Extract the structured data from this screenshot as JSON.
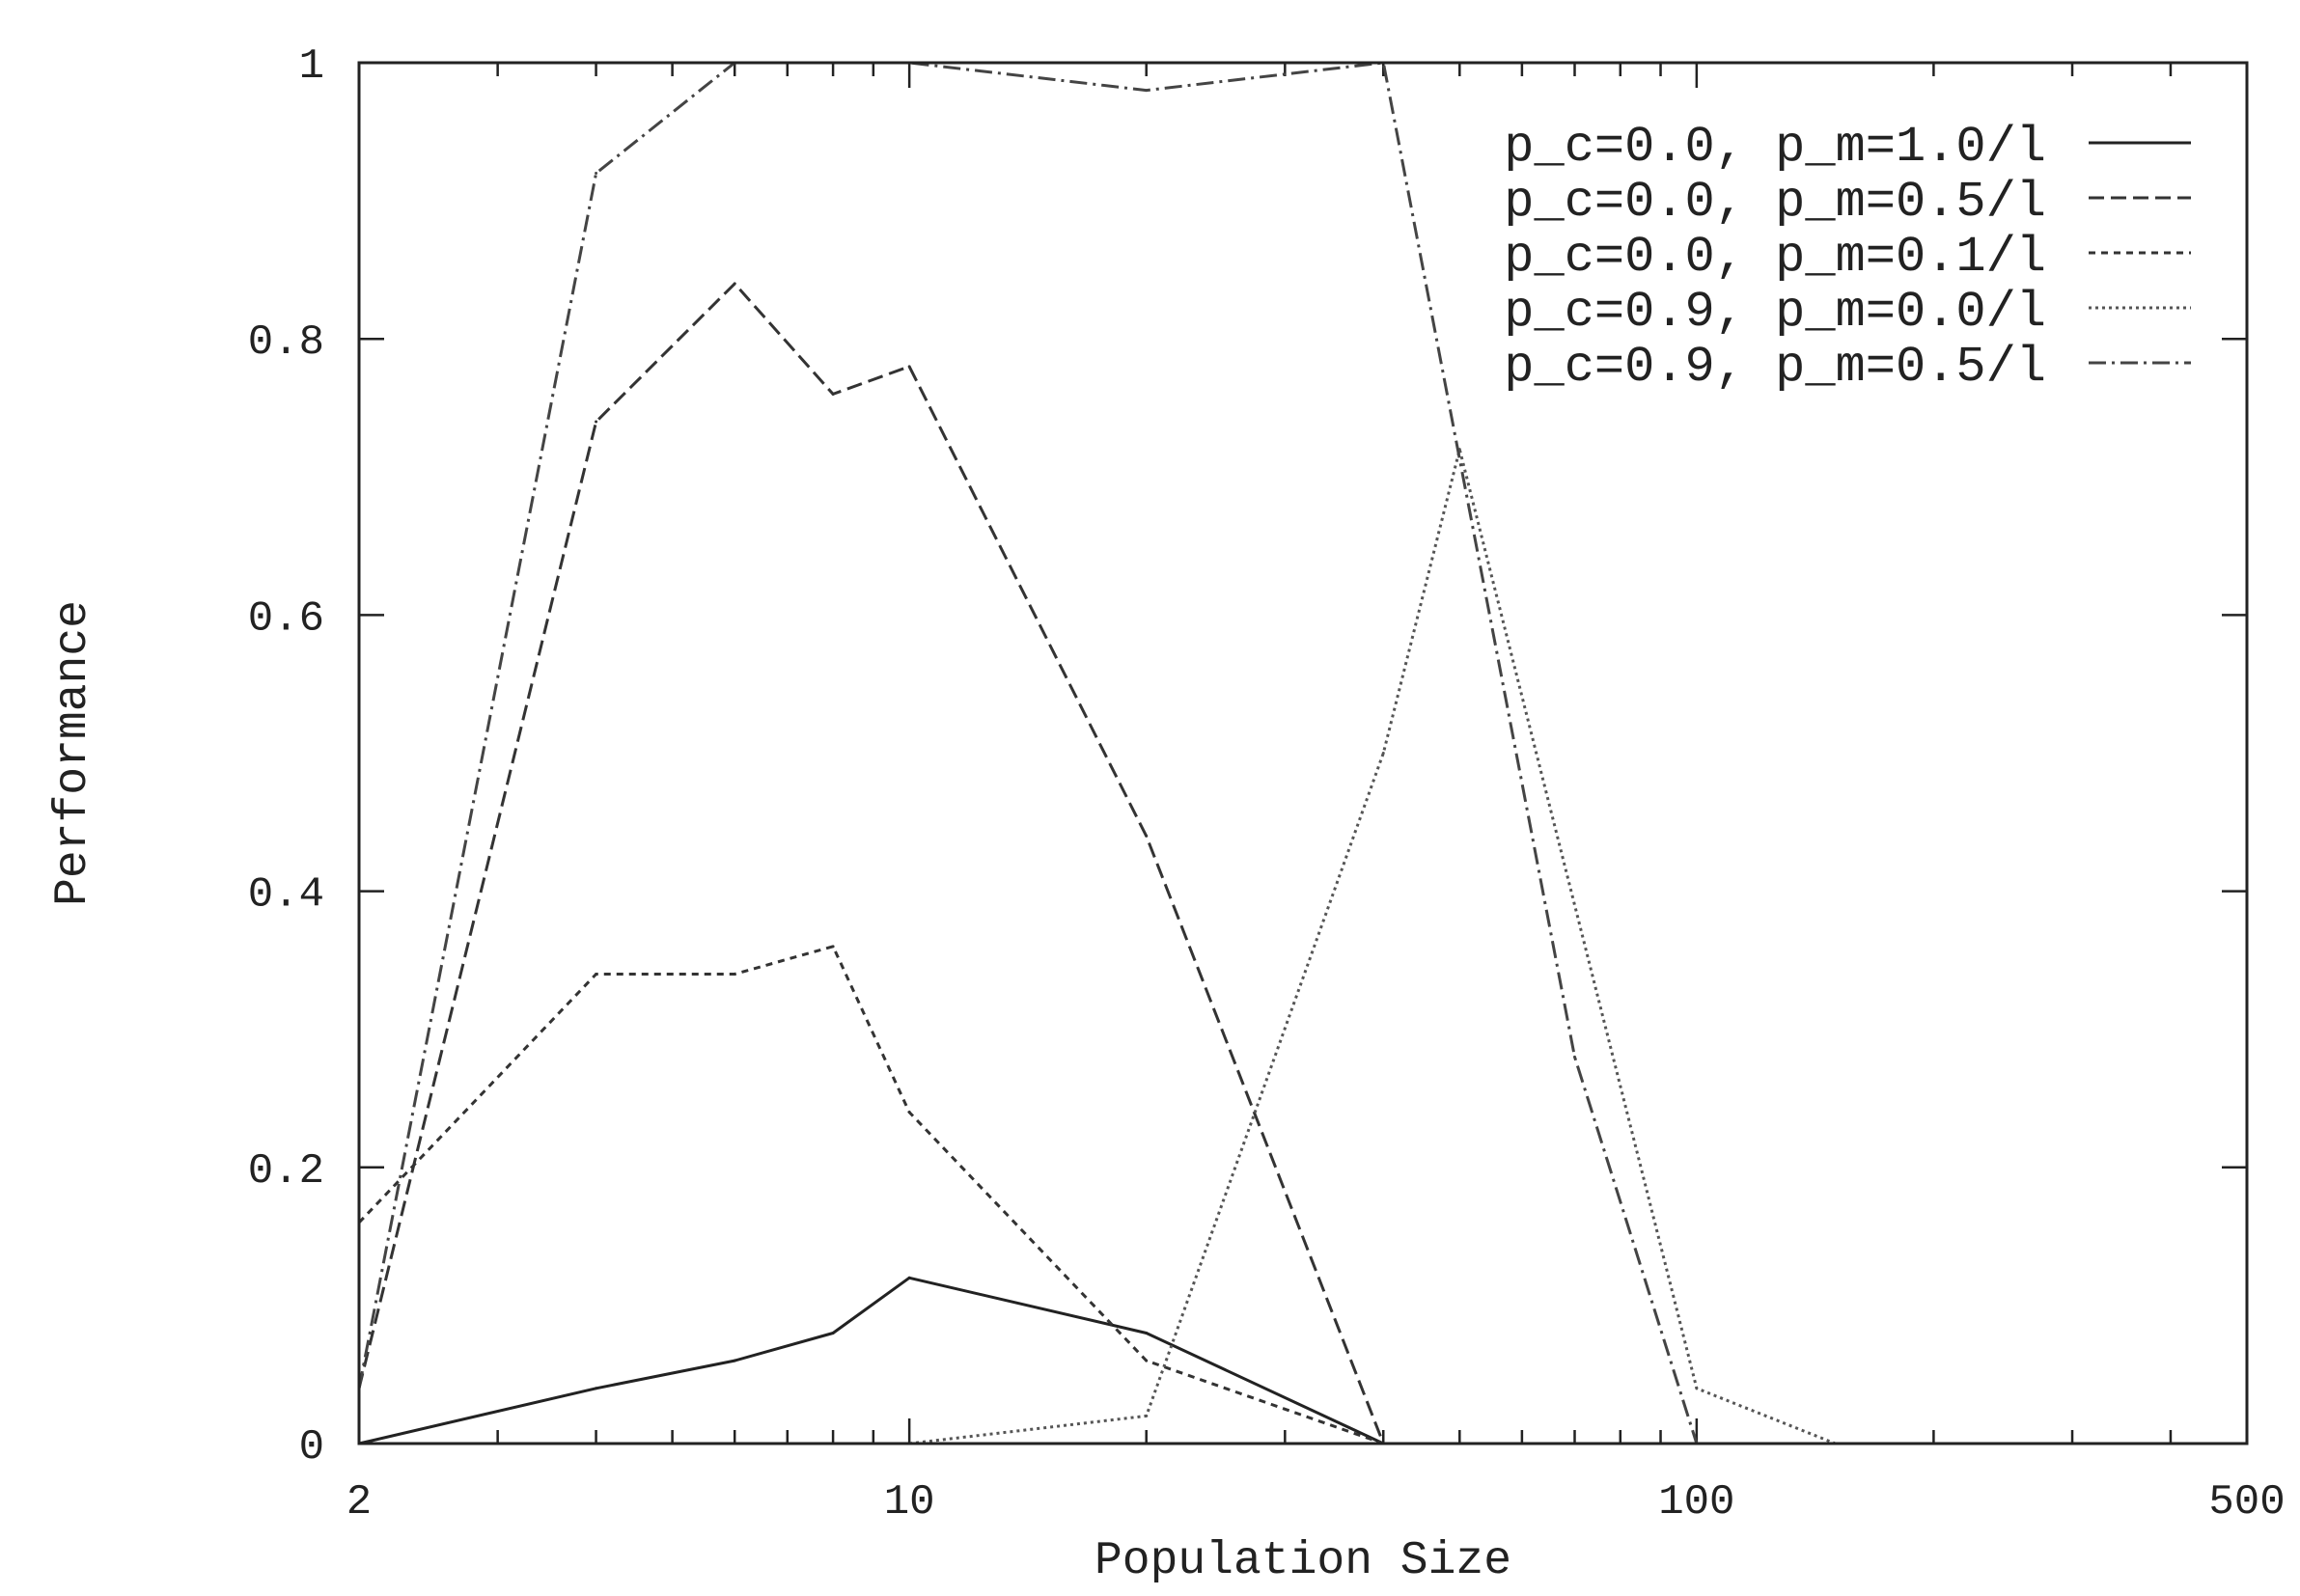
{
  "chart_data": {
    "type": "line",
    "xlabel": "Population Size",
    "ylabel": "Performance",
    "xscale": "log",
    "xlim": [
      2,
      500
    ],
    "ylim": [
      0,
      1
    ],
    "xticks": [
      2,
      10,
      100,
      500
    ],
    "xtick_labels": [
      "2",
      "10",
      "100",
      "500"
    ],
    "yticks": [
      0,
      0.2,
      0.4,
      0.6,
      0.8,
      1
    ],
    "ytick_labels": [
      "0",
      "0.2",
      "0.4",
      "0.6",
      "0.8",
      "1"
    ],
    "grid": false,
    "legend_position": "top-right",
    "series": [
      {
        "name": "p_c=0.0, p_m=1.0/l",
        "dash": "solid",
        "color": "#222222",
        "x": [
          2,
          4,
          6,
          8,
          10,
          20,
          40
        ],
        "y": [
          0,
          0.04,
          0.06,
          0.08,
          0.12,
          0.08,
          0
        ]
      },
      {
        "name": "p_c=0.0, p_m=0.5/l",
        "dash": "dashed",
        "color": "#333333",
        "x": [
          2,
          4,
          6,
          8,
          10,
          20,
          40
        ],
        "y": [
          0.04,
          0.74,
          0.84,
          0.76,
          0.78,
          0.44,
          0
        ]
      },
      {
        "name": "p_c=0.0, p_m=0.1/l",
        "dash": "dotted-dense",
        "color": "#333333",
        "x": [
          2,
          4,
          6,
          8,
          10,
          20,
          40
        ],
        "y": [
          0.16,
          0.34,
          0.34,
          0.36,
          0.24,
          0.06,
          0
        ]
      },
      {
        "name": "p_c=0.9, p_m=0.0/l",
        "dash": "dotted",
        "color": "#555555",
        "x": [
          10,
          20,
          40,
          50,
          100,
          150
        ],
        "y": [
          0,
          0.02,
          0.5,
          0.72,
          0.04,
          0
        ]
      },
      {
        "name": "p_c=0.9, p_m=0.5/l",
        "dash": "dash-dot",
        "color": "#444444",
        "x": [
          2,
          4,
          6,
          10,
          20,
          40,
          70,
          100
        ],
        "y": [
          0.04,
          0.92,
          1.0,
          1.0,
          0.98,
          1.0,
          0.28,
          0
        ]
      }
    ]
  }
}
